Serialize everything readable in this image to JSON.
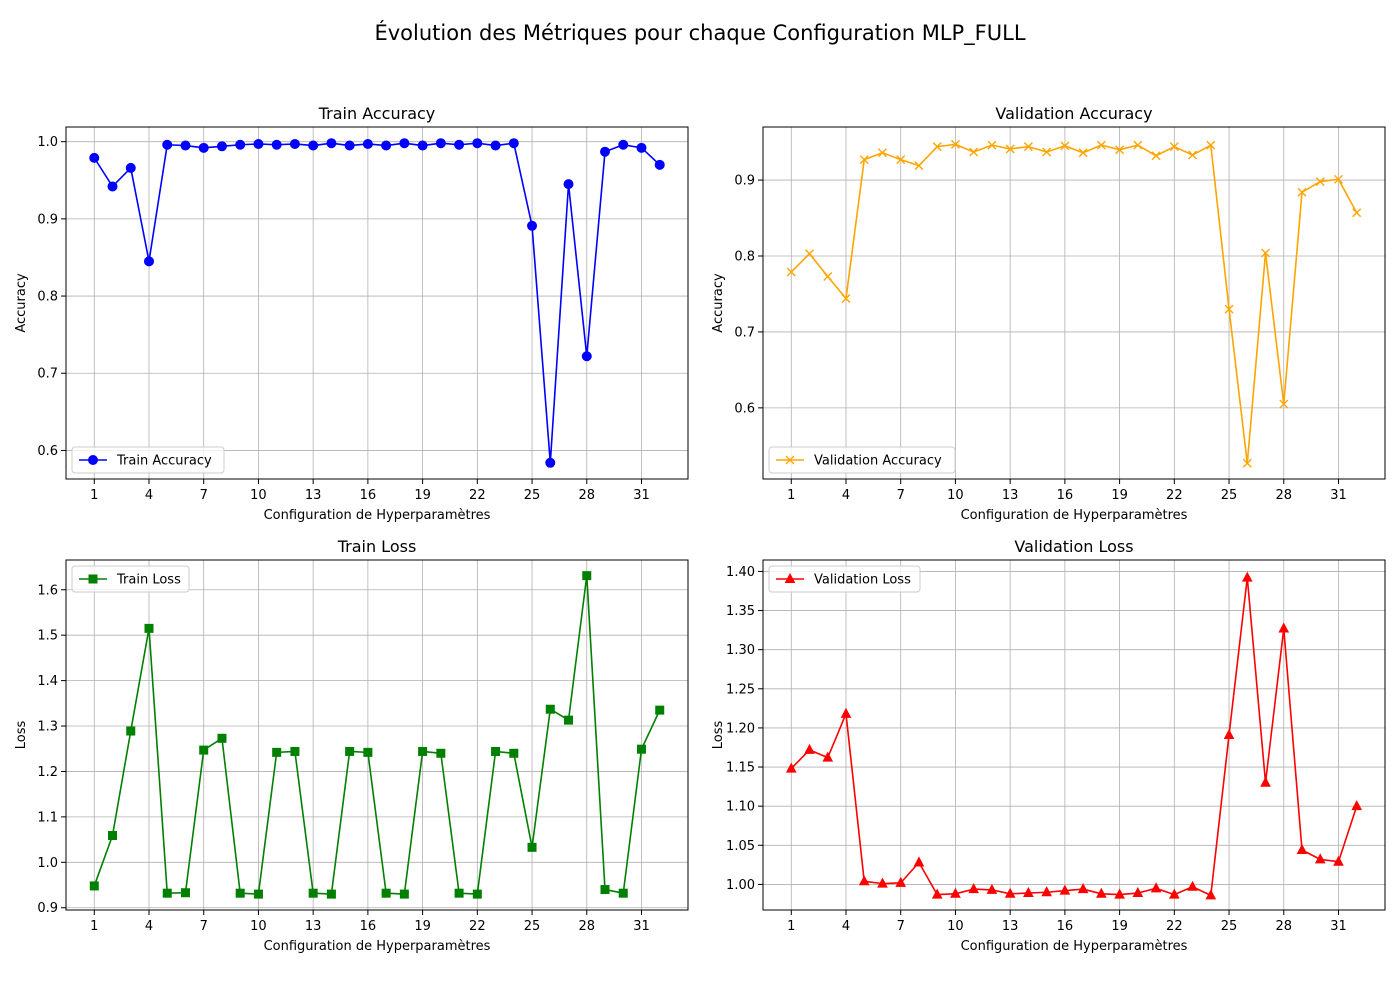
{
  "figure": {
    "title": "Évolution des Métriques pour chaque Configuration MLP_FULL"
  },
  "chart_data": [
    {
      "type": "line",
      "title": "Train Accuracy",
      "xlabel": "Configuration de Hyperparamètres",
      "ylabel": "Accuracy",
      "x": [
        1,
        2,
        3,
        4,
        5,
        6,
        7,
        8,
        9,
        10,
        11,
        12,
        13,
        14,
        15,
        16,
        17,
        18,
        19,
        20,
        21,
        22,
        23,
        24,
        25,
        26,
        27,
        28,
        29,
        30,
        31,
        32
      ],
      "xticks": [
        1,
        4,
        7,
        10,
        13,
        16,
        19,
        22,
        25,
        28,
        31
      ],
      "xlim": [
        -0.55,
        33.55
      ],
      "ylim": [
        0.563,
        1.019
      ],
      "yticks": [
        0.6,
        0.7,
        0.8,
        0.9,
        1.0
      ],
      "ytick_labels": [
        "0.6",
        "0.7",
        "0.8",
        "0.9",
        "1.0"
      ],
      "grid": true,
      "legend_position": "lower left",
      "series": [
        {
          "name": "Train Accuracy",
          "color": "#0000ff",
          "marker": "circle",
          "values": [
            0.979,
            0.942,
            0.966,
            0.845,
            0.996,
            0.995,
            0.992,
            0.994,
            0.996,
            0.997,
            0.996,
            0.997,
            0.995,
            0.998,
            0.995,
            0.997,
            0.995,
            0.998,
            0.995,
            0.998,
            0.996,
            0.998,
            0.995,
            0.998,
            0.891,
            0.584,
            0.945,
            0.722,
            0.987,
            0.996,
            0.992,
            0.97
          ]
        }
      ]
    },
    {
      "type": "line",
      "title": "Validation Accuracy",
      "xlabel": "Configuration de Hyperparamètres",
      "ylabel": "Accuracy",
      "x": [
        1,
        2,
        3,
        4,
        5,
        6,
        7,
        8,
        9,
        10,
        11,
        12,
        13,
        14,
        15,
        16,
        17,
        18,
        19,
        20,
        21,
        22,
        23,
        24,
        25,
        26,
        27,
        28,
        29,
        30,
        31,
        32
      ],
      "xticks": [
        1,
        4,
        7,
        10,
        13,
        16,
        19,
        22,
        25,
        28,
        31
      ],
      "xlim": [
        -0.55,
        33.55
      ],
      "ylim": [
        0.5063,
        0.9699
      ],
      "yticks": [
        0.6,
        0.7,
        0.8,
        0.9
      ],
      "ytick_labels": [
        "0.6",
        "0.7",
        "0.8",
        "0.9"
      ],
      "grid": true,
      "legend_position": "lower left",
      "series": [
        {
          "name": "Validation Accuracy",
          "color": "#ffa500",
          "marker": "x",
          "values": [
            0.779,
            0.803,
            0.773,
            0.744,
            0.927,
            0.936,
            0.927,
            0.919,
            0.944,
            0.947,
            0.937,
            0.946,
            0.941,
            0.944,
            0.937,
            0.945,
            0.936,
            0.946,
            0.94,
            0.946,
            0.932,
            0.944,
            0.933,
            0.946,
            0.73,
            0.527,
            0.804,
            0.605,
            0.884,
            0.898,
            0.901,
            0.857
          ]
        }
      ]
    },
    {
      "type": "line",
      "title": "Train Loss",
      "xlabel": "Configuration de Hyperparamètres",
      "ylabel": "Loss",
      "x": [
        1,
        2,
        3,
        4,
        5,
        6,
        7,
        8,
        9,
        10,
        11,
        12,
        13,
        14,
        15,
        16,
        17,
        18,
        19,
        20,
        21,
        22,
        23,
        24,
        25,
        26,
        27,
        28,
        29,
        30,
        31,
        32
      ],
      "xticks": [
        1,
        4,
        7,
        10,
        13,
        16,
        19,
        22,
        25,
        28,
        31
      ],
      "xlim": [
        -0.55,
        33.55
      ],
      "ylim": [
        0.895,
        1.6655
      ],
      "yticks": [
        0.9,
        1.0,
        1.1,
        1.2,
        1.3,
        1.4,
        1.5,
        1.6
      ],
      "ytick_labels": [
        "0.9",
        "1.0",
        "1.1",
        "1.2",
        "1.3",
        "1.4",
        "1.5",
        "1.6"
      ],
      "grid": true,
      "legend_position": "upper left",
      "series": [
        {
          "name": "Train Loss",
          "color": "#008000",
          "marker": "square",
          "values": [
            0.948,
            1.059,
            1.289,
            1.515,
            0.932,
            0.933,
            1.247,
            1.273,
            0.932,
            0.93,
            1.242,
            1.244,
            0.932,
            0.93,
            1.244,
            1.242,
            0.932,
            0.93,
            1.244,
            1.24,
            0.932,
            0.93,
            1.244,
            1.24,
            1.033,
            1.337,
            1.313,
            1.631,
            0.94,
            0.932,
            1.249,
            1.335
          ]
        }
      ]
    },
    {
      "type": "line",
      "title": "Validation Loss",
      "xlabel": "Configuration de Hyperparamètres",
      "ylabel": "Loss",
      "x": [
        1,
        2,
        3,
        4,
        5,
        6,
        7,
        8,
        9,
        10,
        11,
        12,
        13,
        14,
        15,
        16,
        17,
        18,
        19,
        20,
        21,
        22,
        23,
        24,
        25,
        26,
        27,
        28,
        29,
        30,
        31,
        32
      ],
      "xticks": [
        1,
        4,
        7,
        10,
        13,
        16,
        19,
        22,
        25,
        28,
        31
      ],
      "xlim": [
        -0.55,
        33.55
      ],
      "ylim": [
        0.9673,
        1.4146
      ],
      "yticks": [
        1.0,
        1.05,
        1.1,
        1.15,
        1.2,
        1.25,
        1.3,
        1.35,
        1.4
      ],
      "ytick_labels": [
        "1.00",
        "1.05",
        "1.10",
        "1.15",
        "1.20",
        "1.25",
        "1.30",
        "1.35",
        "1.40"
      ],
      "grid": true,
      "legend_position": "upper left",
      "series": [
        {
          "name": "Validation Loss",
          "color": "#ff0000",
          "marker": "triangle",
          "values": [
            1.148,
            1.172,
            1.162,
            1.218,
            1.004,
            1.001,
            1.002,
            1.028,
            0.987,
            0.988,
            0.994,
            0.993,
            0.988,
            0.989,
            0.99,
            0.992,
            0.994,
            0.988,
            0.987,
            0.989,
            0.995,
            0.987,
            0.997,
            0.986,
            1.191,
            1.392,
            1.13,
            1.327,
            1.044,
            1.032,
            1.029,
            1.1
          ]
        }
      ]
    }
  ]
}
